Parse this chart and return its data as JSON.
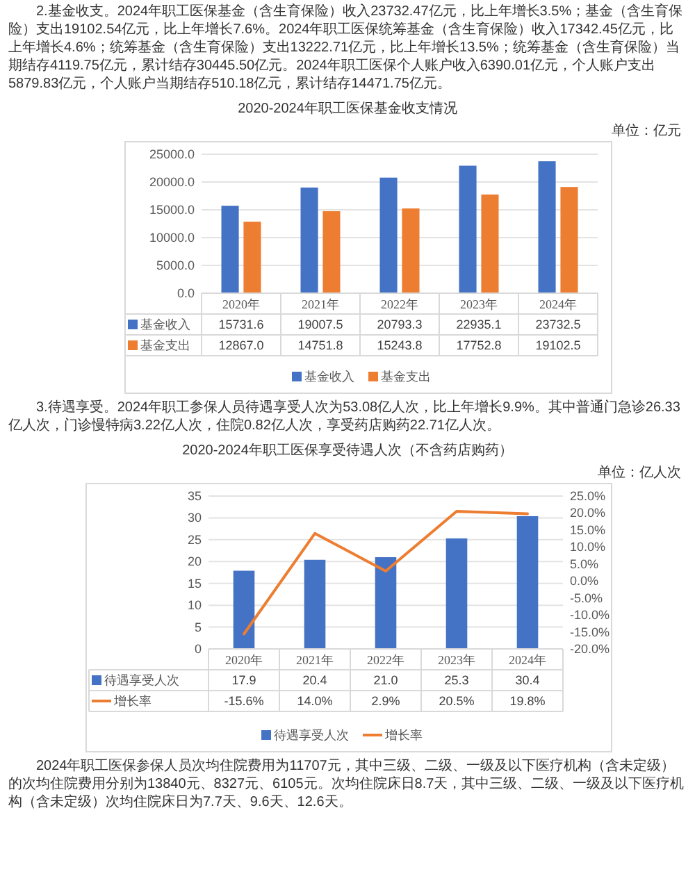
{
  "chart_data": [
    {
      "type": "bar",
      "title": "2020-2024年职工医保基金收支情况",
      "annotations": [
        "2.基金收支。2024年职工医保基金（含生育保险）收入23732.47亿元，比上年增长3.5%；基金（含生育保险）支出19102.54亿元，比上年增长7.6%。2024年职工医保统筹基金（含生育保险）收入17342.45亿元，比上年增长4.6%；统筹基金（含生育保险）支出13222.71亿元，比上年增长13.5%；统筹基金（含生育保险）当期结存4119.75亿元，累计结存30445.50亿元。2024年职工医保个人账户收入6390.01亿元，个人账户支出5879.83亿元，个人账户当期结存510.18亿元，累计结存14471.75亿元。",
        "单位：亿元"
      ],
      "categories": [
        "2020年",
        "2021年",
        "2022年",
        "2023年",
        "2024年"
      ],
      "series": [
        {
          "name": "基金收入",
          "color": "#4472c4",
          "values": [
            15731.6,
            19007.5,
            20793.3,
            22935.1,
            23732.5
          ],
          "value_labels": [
            "15731.6",
            "19007.5",
            "20793.3",
            "22935.1",
            "23732.5"
          ]
        },
        {
          "name": "基金支出",
          "color": "#ed7d31",
          "values": [
            12867.0,
            14751.8,
            15243.8,
            17752.8,
            19102.5
          ],
          "value_labels": [
            "12867.0",
            "14751.8",
            "15243.8",
            "17752.8",
            "19102.5"
          ]
        }
      ],
      "ylim": [
        0,
        25000
      ],
      "yticks": [
        {
          "value": 0,
          "label": "0.0"
        },
        {
          "value": 5000,
          "label": "5000.0"
        },
        {
          "value": 10000,
          "label": "10000.0"
        },
        {
          "value": 15000,
          "label": "15000.0"
        },
        {
          "value": 20000,
          "label": "20000.0"
        },
        {
          "value": 25000,
          "label": "25000.0"
        }
      ],
      "grid": "y",
      "legend": "bottom"
    },
    {
      "type": "bar",
      "title": "2020-2024年职工医保享受待遇人次（不含药店购药）",
      "annotations": [
        "3.待遇享受。2024年职工参保人员待遇享受人次为53.08亿人次，比上年增长9.9%。其中普通门急诊26.33亿人次，门诊慢特病3.22亿人次，住院0.82亿人次，享受药店购药22.71亿人次。",
        "单位：亿人次",
        "2024年职工医保参保人员次均住院费用为11707元，其中三级、二级、一级及以下医疗机构（含未定级）的次均住院费用分别为13840元、8327元、6105元。次均住院床日8.7天，其中三级、二级、一级及以下医疗机构（含未定级）次均住院床日为7.7天、9.6天、12.6天。"
      ],
      "categories": [
        "2020年",
        "2021年",
        "2022年",
        "2023年",
        "2024年"
      ],
      "series": [
        {
          "name": "待遇享受人次",
          "color": "#4472c4",
          "values": [
            17.9,
            20.4,
            21.0,
            25.3,
            30.4
          ],
          "value_labels": [
            "17.9",
            "20.4",
            "21.0",
            "25.3",
            "30.4"
          ]
        },
        {
          "name": "增长率",
          "type": "line",
          "axis": "y2",
          "color": "#ed7d31",
          "values": [
            -15.6,
            14.0,
            2.9,
            20.5,
            19.8
          ],
          "value_labels": [
            "-15.6%",
            "14.0%",
            "2.9%",
            "20.5%",
            "19.8%"
          ]
        }
      ],
      "ylim": [
        0,
        35
      ],
      "yticks": [
        0,
        5,
        10,
        15,
        20,
        25,
        30,
        35
      ],
      "y2lim": [
        -20,
        25
      ],
      "y2ticks": [
        {
          "value": -20,
          "label": "-20.0%"
        },
        {
          "value": -15,
          "label": "-15.0%"
        },
        {
          "value": -10,
          "label": "-10.0%"
        },
        {
          "value": -5,
          "label": "-5.0%"
        },
        {
          "value": 0,
          "label": "0.0%"
        },
        {
          "value": 5,
          "label": "5.0%"
        },
        {
          "value": 10,
          "label": "10.0%"
        },
        {
          "value": 15,
          "label": "15.0%"
        },
        {
          "value": 20,
          "label": "20.0%"
        },
        {
          "value": 25,
          "label": "25.0%"
        }
      ],
      "grid": "y",
      "legend": "bottom"
    }
  ]
}
